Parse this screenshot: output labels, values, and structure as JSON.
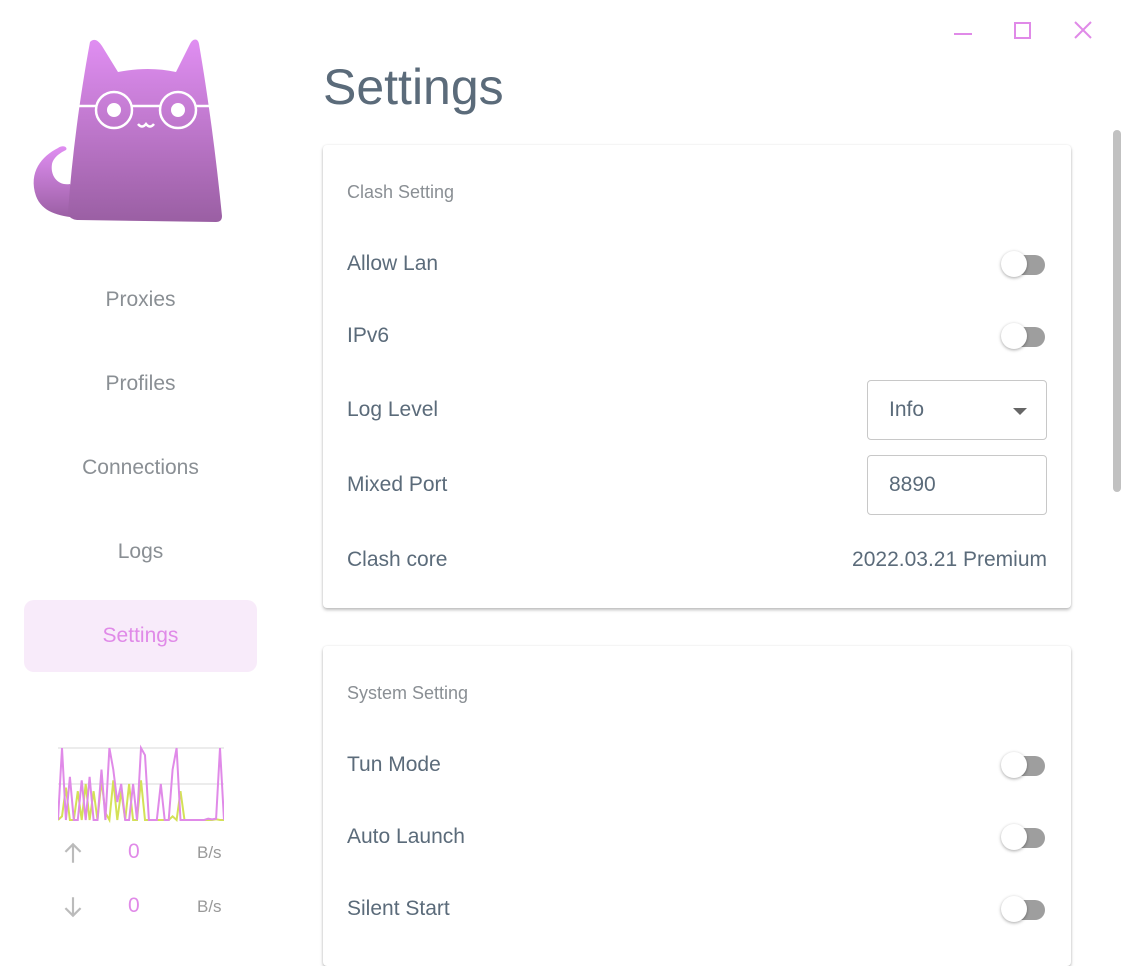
{
  "window": {
    "controls": [
      {
        "name": "minimize-icon"
      },
      {
        "name": "maximize-icon"
      },
      {
        "name": "close-icon"
      }
    ],
    "accent": "#e08ae8"
  },
  "sidebar": {
    "items": [
      {
        "label": "Proxies"
      },
      {
        "label": "Profiles"
      },
      {
        "label": "Connections"
      },
      {
        "label": "Logs"
      },
      {
        "label": "Settings",
        "active": true
      }
    ]
  },
  "traffic": {
    "upload": {
      "value": "0",
      "unit": "B/s",
      "icon": "arrow-up-icon"
    },
    "download": {
      "value": "0",
      "unit": "B/s",
      "icon": "arrow-down-icon"
    },
    "upload_color": "#e08ae8",
    "download_color": "#d4e157",
    "upload_series": [
      0,
      100,
      0,
      60,
      0,
      0,
      55,
      0,
      60,
      0,
      0,
      70,
      0,
      100,
      70,
      25,
      50,
      0,
      0,
      50,
      0,
      100,
      90,
      0,
      0,
      0,
      50,
      0,
      0,
      70,
      100,
      0,
      0,
      0,
      0,
      0,
      0,
      0,
      2,
      1,
      2,
      100,
      0
    ],
    "download_series": [
      0,
      5,
      45,
      0,
      0,
      40,
      0,
      50,
      0,
      40,
      0,
      55,
      10,
      0,
      55,
      0,
      40,
      0,
      50,
      0,
      0,
      55,
      0,
      0,
      0,
      0,
      0,
      0,
      0,
      5,
      0,
      40,
      0,
      0,
      0,
      0,
      0,
      0,
      0,
      0,
      1,
      0,
      0
    ]
  },
  "page": {
    "title": "Settings"
  },
  "clash_setting": {
    "title": "Clash Setting",
    "allow_lan": {
      "label": "Allow Lan",
      "on": false
    },
    "ipv6": {
      "label": "IPv6",
      "on": false
    },
    "log_level": {
      "label": "Log Level",
      "value": "Info"
    },
    "mixed_port": {
      "label": "Mixed Port",
      "value": "8890"
    },
    "clash_core": {
      "label": "Clash core",
      "value": "2022.03.21 Premium"
    }
  },
  "system_setting": {
    "title": "System Setting",
    "tun_mode": {
      "label": "Tun Mode",
      "on": false
    },
    "auto_launch": {
      "label": "Auto Launch",
      "on": false
    },
    "silent_start": {
      "label": "Silent Start",
      "on": false
    }
  }
}
